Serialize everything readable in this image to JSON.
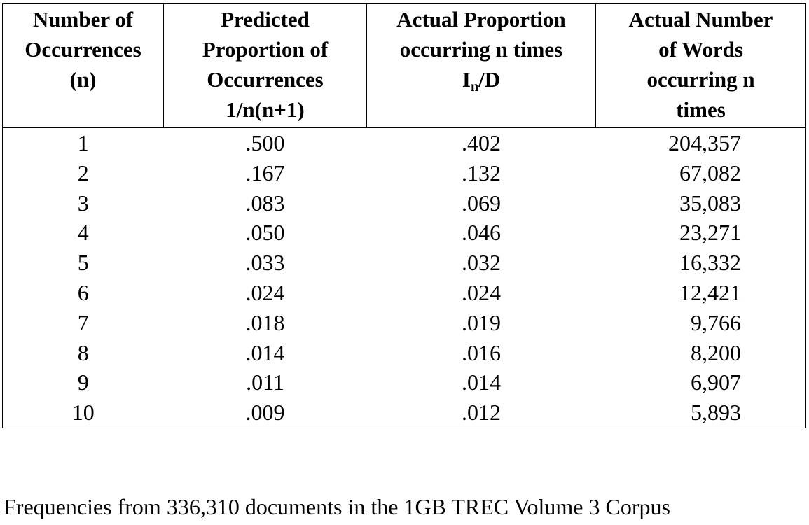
{
  "table": {
    "headers": [
      {
        "lines": [
          "Number of",
          "Occurrences",
          "(n)"
        ]
      },
      {
        "lines": [
          "Predicted",
          "Proportion of",
          "Occurrences",
          "1/n(n+1)"
        ]
      },
      {
        "lines": [
          "Actual Proportion",
          "occurring n times"
        ],
        "formula": {
          "base": "I",
          "sub": "n",
          "tail": "/D"
        }
      },
      {
        "lines": [
          "Actual Number",
          "of  Words",
          "occurring n",
          "times"
        ]
      }
    ],
    "rows": [
      [
        "1",
        ".500",
        ".402",
        "204,357"
      ],
      [
        "2",
        ".167",
        ".132",
        "67,082"
      ],
      [
        "3",
        ".083",
        ".069",
        "35,083"
      ],
      [
        "4",
        ".050",
        ".046",
        "23,271"
      ],
      [
        "5",
        ".033",
        ".032",
        "16,332"
      ],
      [
        "6",
        ".024",
        ".024",
        "12,421"
      ],
      [
        "7",
        ".018",
        ".019",
        "9,766"
      ],
      [
        "8",
        ".014",
        ".016",
        "8,200"
      ],
      [
        "9",
        ".011",
        ".014",
        "6,907"
      ],
      [
        "10",
        ".009",
        ".012",
        "5,893"
      ]
    ]
  },
  "caption": "Frequencies from 336,310 documents in the 1GB TREC Volume 3 Corpus"
}
